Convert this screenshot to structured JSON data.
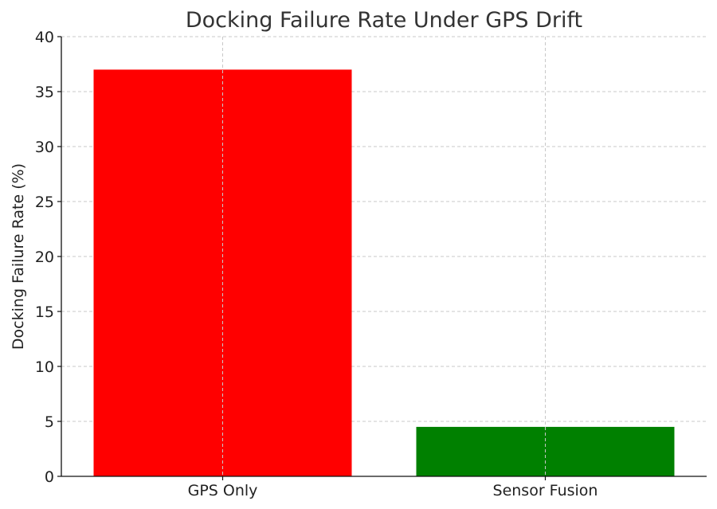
{
  "chart_data": {
    "type": "bar",
    "title": "Docking Failure Rate Under GPS Drift",
    "xlabel": "",
    "ylabel": "Docking Failure Rate (%)",
    "categories": [
      "GPS Only",
      "Sensor Fusion"
    ],
    "values": [
      37,
      4.5
    ],
    "colors": [
      "#ff0000",
      "#008000"
    ],
    "ylim": [
      0,
      40
    ],
    "yticks": [
      0,
      5,
      10,
      15,
      20,
      25,
      30,
      35,
      40
    ],
    "grid": true
  }
}
